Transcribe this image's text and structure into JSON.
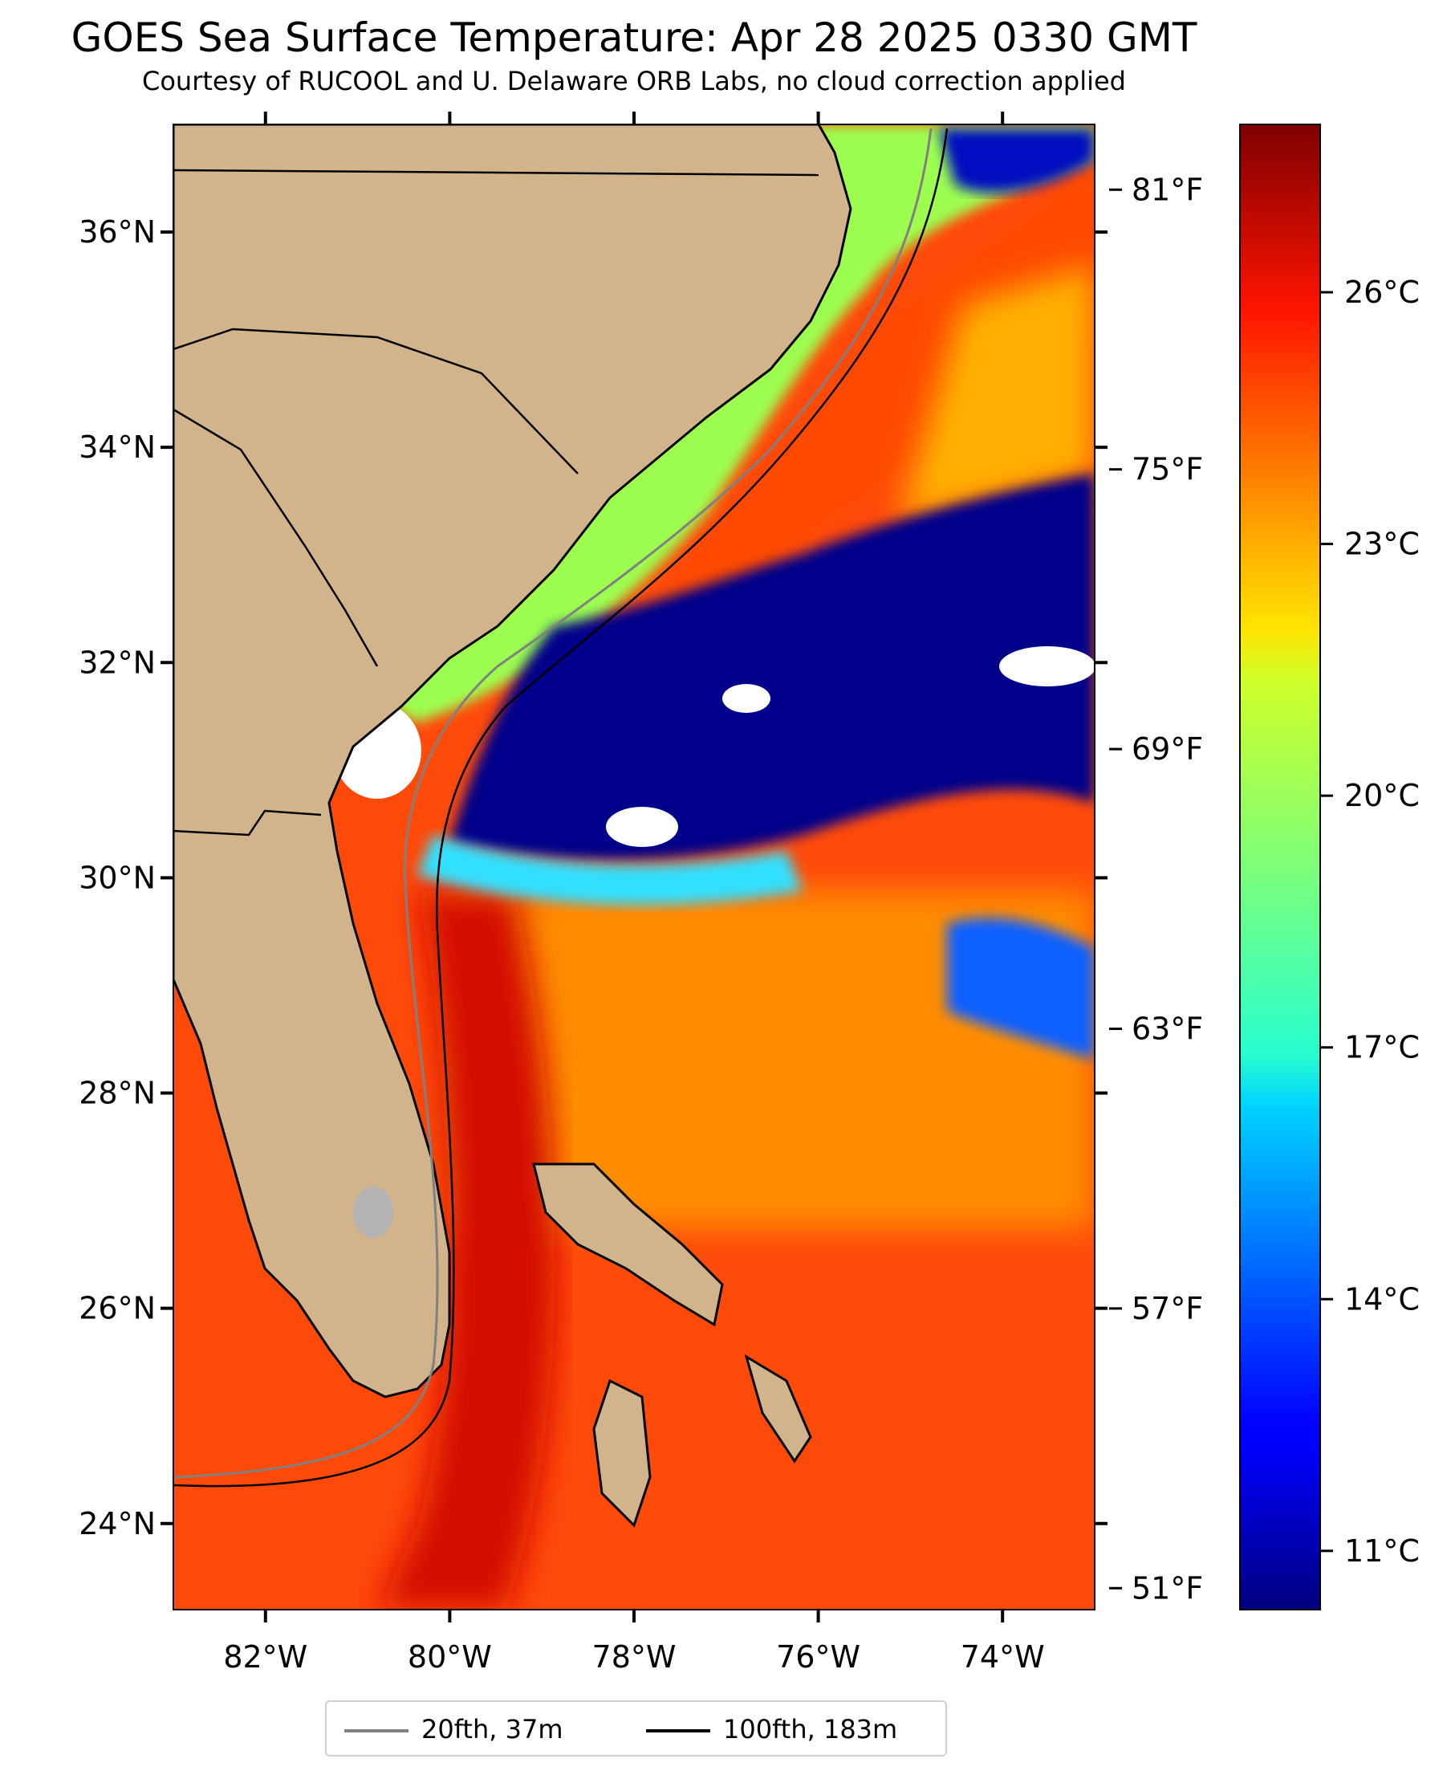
{
  "title": "GOES Sea Surface Temperature: Apr 28 2025 0330 GMT",
  "subtitle": "Courtesy of RUCOOL and U. Delaware ORB Labs, no cloud correction applied",
  "map": {
    "lon_range": [
      -83.0,
      -73.0
    ],
    "lat_range": [
      23.2,
      37.0
    ],
    "lon_ticks": [
      {
        "value": -82,
        "label": "82°W"
      },
      {
        "value": -80,
        "label": "80°W"
      },
      {
        "value": -78,
        "label": "78°W"
      },
      {
        "value": -76,
        "label": "76°W"
      },
      {
        "value": -74,
        "label": "74°W"
      }
    ],
    "lat_ticks": [
      {
        "value": 24,
        "label": "24°N"
      },
      {
        "value": 26,
        "label": "26°N"
      },
      {
        "value": 28,
        "label": "28°N"
      },
      {
        "value": 30,
        "label": "30°N"
      },
      {
        "value": 32,
        "label": "32°N"
      },
      {
        "value": 34,
        "label": "34°N"
      },
      {
        "value": 36,
        "label": "36°N"
      }
    ],
    "colors": {
      "land": "#d2b48c",
      "warm_water": "#ff3a00",
      "gulf_stream": "#dd0a00",
      "cool_water": "#00008b",
      "shelf_water": "#8cff60",
      "no_data": "#ffffff"
    }
  },
  "colorbar": {
    "colormap": "jet",
    "celsius_range": [
      10.3,
      28.0
    ],
    "celsius_ticks": [
      {
        "value": 11,
        "label": "11°C"
      },
      {
        "value": 14,
        "label": "14°C"
      },
      {
        "value": 17,
        "label": "17°C"
      },
      {
        "value": 20,
        "label": "20°C"
      },
      {
        "value": 23,
        "label": "23°C"
      },
      {
        "value": 26,
        "label": "26°C"
      }
    ],
    "fahrenheit_ticks": [
      {
        "value": 51,
        "label": "51°F"
      },
      {
        "value": 57,
        "label": "57°F"
      },
      {
        "value": 63,
        "label": "63°F"
      },
      {
        "value": 69,
        "label": "69°F"
      },
      {
        "value": 75,
        "label": "75°F"
      },
      {
        "value": 81,
        "label": "81°F"
      }
    ]
  },
  "legend": [
    {
      "label": "20fth, 37m",
      "color": "#808080"
    },
    {
      "label": "100fth, 183m",
      "color": "#000000"
    }
  ]
}
